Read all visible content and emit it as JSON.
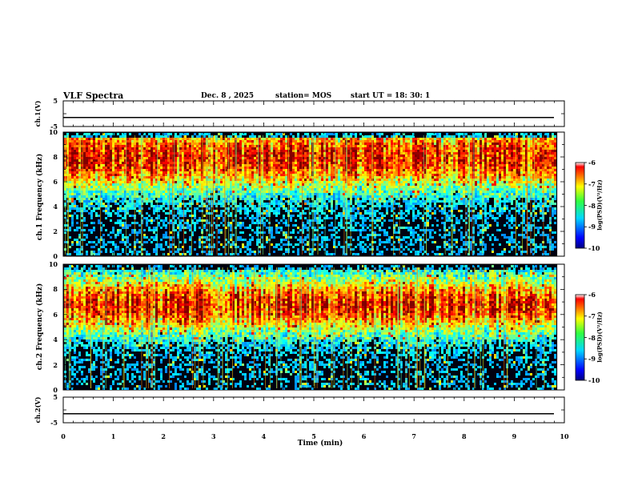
{
  "header": {
    "title": "VLF Spectra",
    "date": "Dec. 8 , 2025",
    "station": "station= MOS",
    "start_ut": "start UT =",
    "start_time": "18: 30: 1"
  },
  "chart_data": [
    {
      "type": "line",
      "name": "ch1 waveform",
      "ylabel": "ch.1(V)",
      "ylim": [
        -5,
        5
      ],
      "yticks": [
        "5",
        "-5"
      ],
      "level": -1.5,
      "xlim": [
        0,
        10
      ]
    },
    {
      "type": "heatmap",
      "name": "ch1 spectrogram",
      "ylabel": "ch.1 Frequency (kHz)",
      "ylim": [
        0,
        10
      ],
      "yticks": [
        "0",
        "2",
        "4",
        "6",
        "8",
        "10"
      ],
      "xlim": [
        0,
        9.85
      ],
      "colorbar": {
        "label": "log(PSD)(V²/Hz)",
        "ticks": [
          "-6",
          "-7",
          "-8",
          "-9",
          "-10"
        ],
        "range": [
          -10,
          -6
        ]
      }
    },
    {
      "type": "heatmap",
      "name": "ch2 spectrogram",
      "ylabel": "ch.2 Frequency (kHz)",
      "ylim": [
        0,
        10
      ],
      "yticks": [
        "0",
        "2",
        "4",
        "6",
        "8",
        "10"
      ],
      "xlim": [
        0,
        9.85
      ],
      "colorbar": {
        "label": "log(PSD)(V²/Hz)",
        "ticks": [
          "-6",
          "-7",
          "-8",
          "-9",
          "-10"
        ],
        "range": [
          -10,
          -6
        ]
      }
    },
    {
      "type": "line",
      "name": "ch2 waveform",
      "ylabel": "ch.2(V)",
      "ylim": [
        -5,
        5
      ],
      "yticks": [
        "5",
        "-5"
      ],
      "level": -1.5,
      "xlim": [
        0,
        10
      ]
    }
  ],
  "xaxis": {
    "label": "Time  (min)",
    "ticks": [
      "0",
      "1",
      "2",
      "3",
      "4",
      "5",
      "6",
      "7",
      "8",
      "9",
      "10"
    ],
    "range": [
      0,
      10
    ]
  }
}
